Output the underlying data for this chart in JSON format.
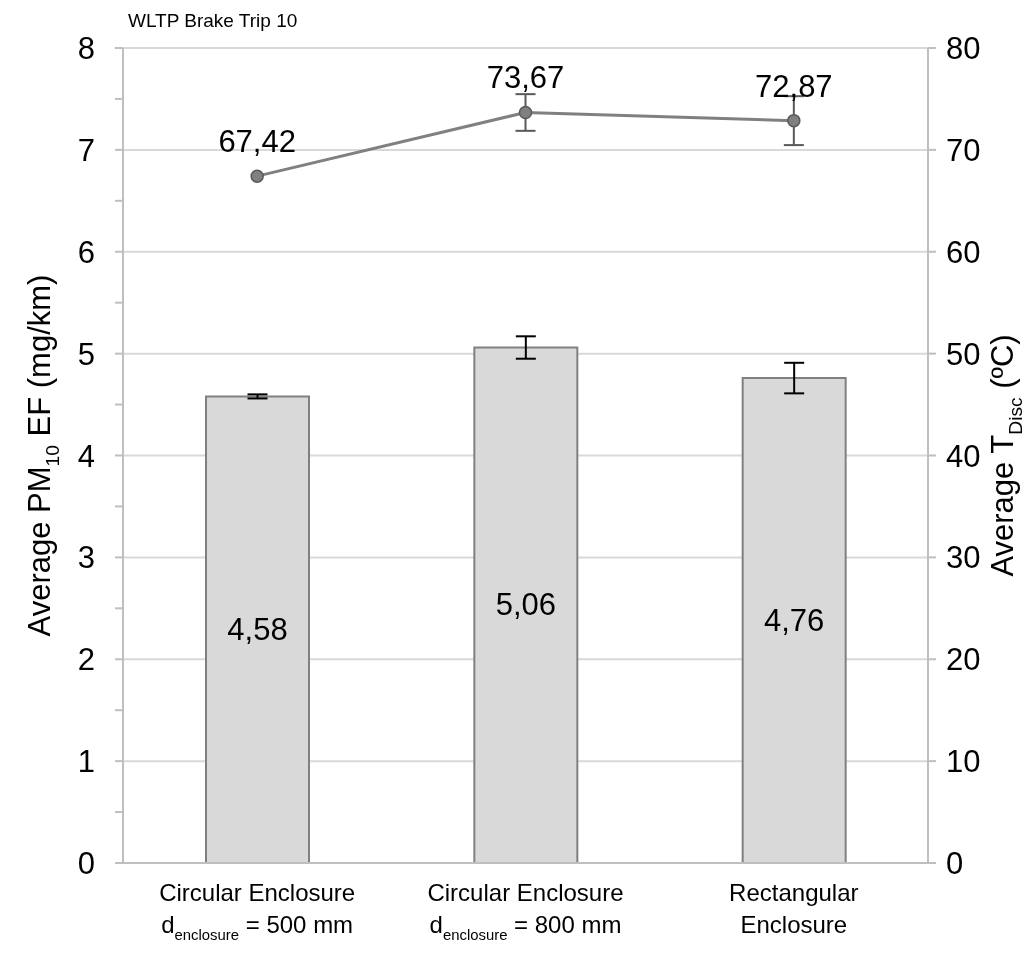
{
  "chart_data": {
    "type": "bar",
    "title": "WLTP Brake Trip 10",
    "categories": [
      "Circular Enclosure\nd$_{enclosure}$ = 500 mm",
      "Circular Enclosure\nd$_{enclosure}$ = 800 mm",
      "Rectangular\nEnclosure"
    ],
    "ylabel": "Average PM$_{10}$ EF (mg/km)",
    "y2label": "Average T$_{Disc}$ (ºC)",
    "series": [
      {
        "color": "#d9d9d9",
        "values": [
          4.58,
          5.06,
          4.76
        ],
        "errors": [
          0.02,
          0.11,
          0.15
        ],
        "value_labels": [
          "4,58",
          "5,06",
          "4,76"
        ]
      },
      {
        "type": "line",
        "axis": "y2",
        "color": "#808080",
        "values": [
          67.42,
          73.67,
          72.87
        ],
        "errors": [
          null,
          1.8,
          2.4
        ],
        "value_labels": [
          "67,42",
          "73,67",
          "72,87"
        ]
      }
    ],
    "ylim": [
      0,
      8
    ],
    "yticks": [
      0,
      {
        "value": 0.5,
        "label": null
      },
      1,
      {
        "value": 1.5,
        "label": null
      },
      2,
      {
        "value": 2.5,
        "label": null
      },
      3,
      {
        "value": 3.5,
        "label": null
      },
      4,
      {
        "value": 4.5,
        "label": null
      },
      5,
      {
        "value": 5.5,
        "label": null
      },
      6,
      {
        "value": 6.5,
        "label": null
      },
      7,
      {
        "value": 7.5,
        "label": null
      },
      8
    ],
    "y2lim": [
      0,
      80
    ],
    "y2ticks": [
      0,
      10,
      20,
      30,
      40,
      50,
      60,
      70,
      80
    ],
    "grid": "y",
    "legend": false,
    "marker": "circle",
    "line_style": "solid"
  }
}
